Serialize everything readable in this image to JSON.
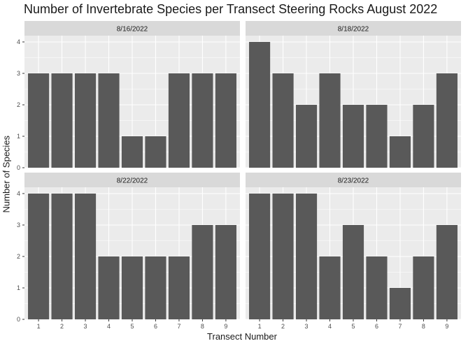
{
  "chart_data": {
    "type": "bar",
    "title": "Number of Invertebrate Species per Transect Steering Rocks August 2022",
    "xlabel": "Transect Number",
    "ylabel": "Number of Species",
    "categories": [
      "1",
      "2",
      "3",
      "4",
      "5",
      "6",
      "7",
      "8",
      "9"
    ],
    "yticks": [
      "0",
      "1",
      "2",
      "3",
      "4"
    ],
    "ylim": [
      0,
      4.2
    ],
    "facets": [
      {
        "name": "8/16/2022",
        "values": [
          3,
          3,
          3,
          3,
          1,
          1,
          3,
          3,
          3
        ]
      },
      {
        "name": "8/18/2022",
        "values": [
          4,
          3,
          2,
          3,
          2,
          2,
          1,
          2,
          3
        ]
      },
      {
        "name": "8/22/2022",
        "values": [
          4,
          4,
          4,
          2,
          2,
          2,
          2,
          3,
          3
        ]
      },
      {
        "name": "8/23/2022",
        "values": [
          4,
          4,
          4,
          2,
          3,
          2,
          1,
          2,
          3
        ]
      }
    ],
    "colors": {
      "bar": "#595959",
      "panel": "#ebebeb",
      "grid": "#ffffff",
      "strip": "#d9d9d9"
    }
  }
}
